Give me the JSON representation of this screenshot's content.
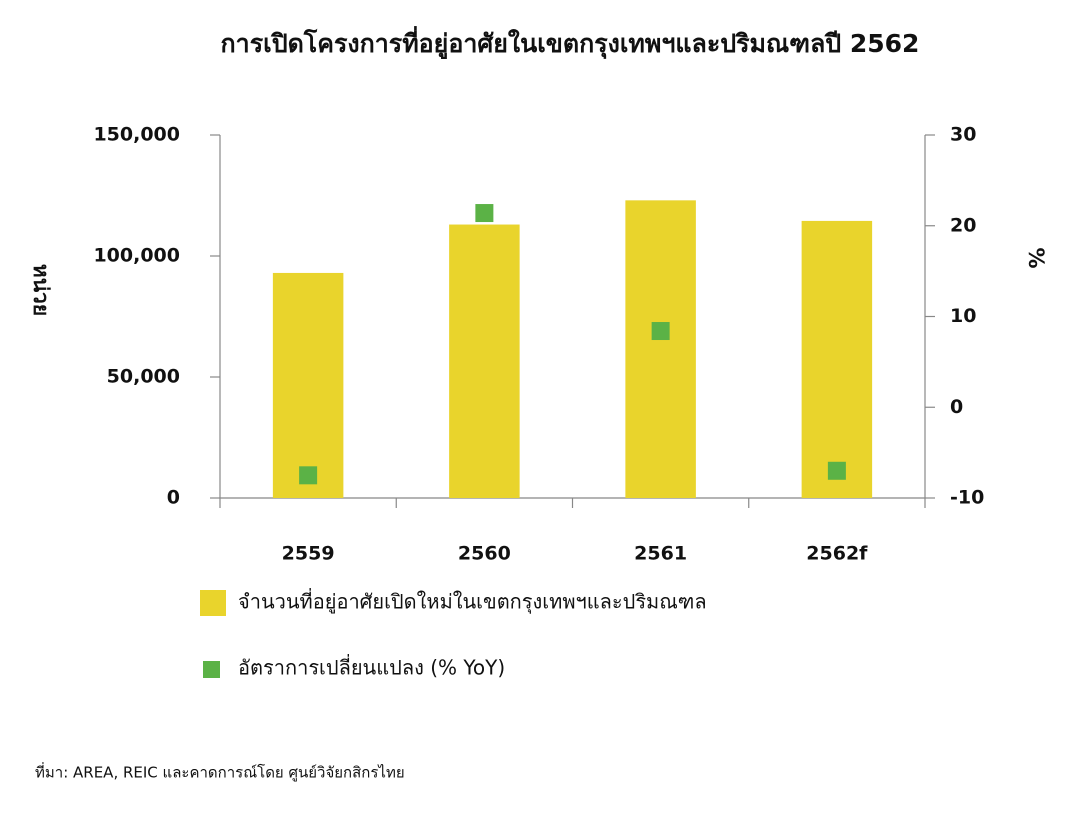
{
  "chart_data": {
    "type": "bar",
    "title": "การเปิดโครงการที่อยู่อาศัยในเขตกรุงเทพฯและปริมณฑลปี 2562",
    "y_label": "หน่วย",
    "y2_label": "%",
    "categories": [
      "2559",
      "2560",
      "2561",
      "2562f"
    ],
    "series": [
      {
        "name": "จำนวนที่อยู่อาศัยเปิดใหม่ในเขตกรุงเทพฯและปริมณฑล",
        "type": "bar",
        "color": "#e9d42c",
        "values": [
          93000,
          113000,
          123000,
          114500
        ]
      },
      {
        "name": "อัตราการเปลี่ยนแปลง (% YoY)",
        "type": "scatter",
        "axis": "y2",
        "color": "#5bb246",
        "values": [
          -7.5,
          21.4,
          8.4,
          -7.0
        ]
      }
    ],
    "ylim": [
      0,
      150000
    ],
    "yticks": [
      0,
      {
        "value": 50000,
        "label": "50,000"
      },
      {
        "value": 100000,
        "label": "100,000"
      },
      {
        "value": 150000,
        "label": "150,000"
      }
    ],
    "y2lim": [
      -10,
      30
    ],
    "y2ticks": [
      -10,
      0,
      10,
      20,
      30
    ],
    "grid": false,
    "source": "ที่มา: AREA, REIC และคาดการณ์โดย ศูนย์วิจัยกสิกรไทย"
  }
}
